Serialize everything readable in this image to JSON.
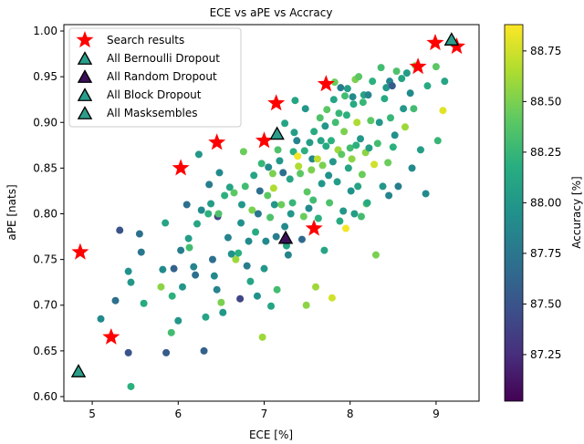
{
  "chart_data": {
    "type": "scatter",
    "title": "ECE vs aPE vs Accracy",
    "xlabel": "ECE [%]",
    "ylabel": "aPE [nats]",
    "xlim": [
      4.67,
      9.5
    ],
    "ylim": [
      0.595,
      1.007
    ],
    "xticks": [
      5,
      6,
      7,
      8,
      9
    ],
    "yticks": [
      0.6,
      0.65,
      0.7,
      0.75,
      0.8,
      0.85,
      0.9,
      0.95,
      1.0
    ],
    "xtick_labels": [
      "5",
      "6",
      "7",
      "8",
      "9"
    ],
    "ytick_labels": [
      "0.60",
      "0.65",
      "0.70",
      "0.75",
      "0.80",
      "0.85",
      "0.90",
      "0.95",
      "1.00"
    ],
    "grid": false,
    "legend_position": "top-left",
    "colorbar": {
      "label": "Accuracy [%]",
      "colormap": "viridis",
      "range": [
        87.02,
        88.88
      ],
      "ticks": [
        87.25,
        87.5,
        87.75,
        88.0,
        88.25,
        88.5,
        88.75
      ],
      "tick_labels": [
        "87.25",
        "87.50",
        "87.75",
        "88.00",
        "88.25",
        "88.50",
        "88.75"
      ]
    },
    "series": [
      {
        "name": "Search results",
        "marker": "star",
        "color": "#ff0000",
        "points": [
          [
            4.86,
            0.758
          ],
          [
            5.22,
            0.665
          ],
          [
            6.03,
            0.85
          ],
          [
            6.45,
            0.878
          ],
          [
            7.0,
            0.88
          ],
          [
            7.14,
            0.921
          ],
          [
            7.58,
            0.784
          ],
          [
            7.72,
            0.942
          ],
          [
            8.79,
            0.961
          ],
          [
            8.99,
            0.987
          ],
          [
            9.24,
            0.983
          ]
        ]
      },
      {
        "name": "All Bernoulli Dropout",
        "marker": "triangle",
        "color": "#2b9e8a",
        "points": [
          [
            4.84,
            0.627
          ]
        ]
      },
      {
        "name": "All Random Dropout",
        "marker": "triangle",
        "color": "#3b0f58",
        "points": [
          [
            7.25,
            0.773
          ]
        ]
      },
      {
        "name": "All Block Dropout",
        "marker": "triangle",
        "color": "#2a9e8c",
        "points": [
          [
            7.15,
            0.887
          ]
        ]
      },
      {
        "name": "All Masksembles",
        "marker": "triangle",
        "color": "#2d9d8a",
        "points": [
          [
            9.18,
            0.99
          ]
        ]
      }
    ],
    "scatter_points": [
      [
        5.1,
        0.685,
        87.9
      ],
      [
        5.27,
        0.705,
        87.7
      ],
      [
        5.32,
        0.782,
        87.5
      ],
      [
        5.42,
        0.737,
        87.95
      ],
      [
        5.42,
        0.648,
        87.5
      ],
      [
        5.45,
        0.611,
        88.2
      ],
      [
        5.45,
        0.725,
        88.0
      ],
      [
        5.55,
        0.778,
        87.7
      ],
      [
        5.57,
        0.758,
        87.75
      ],
      [
        5.6,
        0.702,
        88.15
      ],
      [
        5.8,
        0.72,
        88.55
      ],
      [
        5.82,
        0.739,
        87.9
      ],
      [
        5.85,
        0.79,
        88.1
      ],
      [
        5.86,
        0.648,
        87.55
      ],
      [
        5.92,
        0.67,
        88.3
      ],
      [
        5.93,
        0.71,
        88.2
      ],
      [
        5.95,
        0.74,
        87.6
      ],
      [
        6.0,
        0.683,
        88.0
      ],
      [
        6.03,
        0.76,
        87.8
      ],
      [
        6.05,
        0.72,
        88.0
      ],
      [
        6.1,
        0.81,
        87.7
      ],
      [
        6.12,
        0.773,
        88.05
      ],
      [
        6.13,
        0.763,
        88.3
      ],
      [
        6.18,
        0.742,
        87.85
      ],
      [
        6.2,
        0.733,
        87.7
      ],
      [
        6.22,
        0.789,
        88.1
      ],
      [
        6.24,
        0.865,
        88.0
      ],
      [
        6.27,
        0.804,
        87.9
      ],
      [
        6.3,
        0.65,
        87.6
      ],
      [
        6.32,
        0.687,
        88.1
      ],
      [
        6.35,
        0.8,
        88.2
      ],
      [
        6.36,
        0.832,
        87.8
      ],
      [
        6.38,
        0.811,
        88.05
      ],
      [
        6.4,
        0.75,
        87.7
      ],
      [
        6.42,
        0.732,
        87.9
      ],
      [
        6.45,
        0.717,
        87.85
      ],
      [
        6.46,
        0.797,
        87.4
      ],
      [
        6.47,
        0.8,
        88.35
      ],
      [
        6.48,
        0.845,
        87.9
      ],
      [
        6.5,
        0.703,
        88.5
      ],
      [
        6.52,
        0.692,
        88.0
      ],
      [
        6.54,
        0.82,
        88.2
      ],
      [
        6.58,
        0.774,
        87.85
      ],
      [
        6.6,
        0.829,
        88.1
      ],
      [
        6.62,
        0.756,
        87.95
      ],
      [
        6.65,
        0.823,
        88.4
      ],
      [
        6.67,
        0.75,
        88.6
      ],
      [
        6.7,
        0.757,
        88.2
      ],
      [
        6.72,
        0.707,
        87.4
      ],
      [
        6.73,
        0.79,
        87.95
      ],
      [
        6.74,
        0.81,
        88.0
      ],
      [
        6.76,
        0.868,
        88.45
      ],
      [
        6.78,
        0.83,
        88.3
      ],
      [
        6.8,
        0.743,
        87.8
      ],
      [
        6.82,
        0.77,
        87.9
      ],
      [
        6.84,
        0.726,
        88.1
      ],
      [
        6.86,
        0.804,
        88.5
      ],
      [
        6.88,
        0.842,
        88.1
      ],
      [
        6.9,
        0.78,
        88.15
      ],
      [
        6.92,
        0.71,
        87.95
      ],
      [
        6.93,
        0.8,
        87.75
      ],
      [
        6.95,
        0.825,
        87.7
      ],
      [
        6.97,
        0.855,
        88.25
      ],
      [
        6.98,
        0.665,
        88.6
      ],
      [
        7.0,
        0.74,
        88.0
      ],
      [
        7.02,
        0.77,
        87.9
      ],
      [
        7.04,
        0.82,
        88.4
      ],
      [
        7.05,
        0.851,
        87.9
      ],
      [
        7.07,
        0.796,
        88.35
      ],
      [
        7.08,
        0.699,
        88.1
      ],
      [
        7.1,
        0.844,
        88.5
      ],
      [
        7.11,
        0.828,
        88.65
      ],
      [
        7.12,
        0.81,
        88.0
      ],
      [
        7.14,
        0.775,
        87.8
      ],
      [
        7.15,
        0.717,
        88.3
      ],
      [
        7.16,
        0.87,
        88.35
      ],
      [
        7.18,
        0.858,
        88.0
      ],
      [
        7.2,
        0.81,
        88.45
      ],
      [
        7.22,
        0.845,
        87.7
      ],
      [
        7.24,
        0.786,
        87.9
      ],
      [
        7.24,
        0.899,
        88.1
      ],
      [
        7.26,
        0.765,
        88.1
      ],
      [
        7.28,
        0.755,
        87.85
      ],
      [
        7.3,
        0.838,
        88.1
      ],
      [
        7.31,
        0.8,
        88.0
      ],
      [
        7.33,
        0.812,
        88.25
      ],
      [
        7.34,
        0.868,
        88.2
      ],
      [
        7.35,
        0.889,
        88.05
      ],
      [
        7.36,
        0.924,
        88.1
      ],
      [
        7.38,
        0.88,
        87.85
      ],
      [
        7.39,
        0.863,
        88.85
      ],
      [
        7.4,
        0.852,
        88.65
      ],
      [
        7.42,
        0.844,
        88.4
      ],
      [
        7.44,
        0.772,
        87.65
      ],
      [
        7.46,
        0.797,
        88.45
      ],
      [
        7.47,
        0.869,
        88.2
      ],
      [
        7.48,
        0.915,
        88.0
      ],
      [
        7.49,
        0.7,
        88.55
      ],
      [
        7.5,
        0.824,
        88.4
      ],
      [
        7.52,
        0.806,
        87.9
      ],
      [
        7.53,
        0.878,
        88.05
      ],
      [
        7.55,
        0.848,
        88.5
      ],
      [
        7.56,
        0.86,
        87.9
      ],
      [
        7.57,
        0.815,
        88.3
      ],
      [
        7.58,
        0.89,
        88.15
      ],
      [
        7.6,
        0.72,
        88.6
      ],
      [
        7.62,
        0.86,
        88.7
      ],
      [
        7.63,
        0.795,
        88.2
      ],
      [
        7.65,
        0.905,
        88.35
      ],
      [
        7.66,
        0.88,
        88.1
      ],
      [
        7.67,
        0.833,
        88.0
      ],
      [
        7.68,
        0.853,
        88.5
      ],
      [
        7.7,
        0.76,
        88.1
      ],
      [
        7.71,
        0.896,
        88.0
      ],
      [
        7.72,
        0.874,
        88.15
      ],
      [
        7.73,
        0.914,
        88.4
      ],
      [
        7.75,
        0.842,
        87.95
      ],
      [
        7.76,
        0.812,
        88.35
      ],
      [
        7.78,
        0.88,
        88.2
      ],
      [
        7.79,
        0.708,
        88.75
      ],
      [
        7.8,
        0.857,
        88.0
      ],
      [
        7.81,
        0.925,
        88.1
      ],
      [
        7.82,
        0.944,
        88.45
      ],
      [
        7.83,
        0.9,
        88.3
      ],
      [
        7.85,
        0.835,
        88.05
      ],
      [
        7.86,
        0.87,
        88.6
      ],
      [
        7.87,
        0.91,
        88.25
      ],
      [
        7.88,
        0.792,
        88.15
      ],
      [
        7.89,
        0.938,
        87.8
      ],
      [
        7.9,
        0.865,
        88.4
      ],
      [
        7.92,
        0.803,
        88.0
      ],
      [
        7.93,
        0.89,
        88.5
      ],
      [
        7.94,
        0.929,
        88.3
      ],
      [
        7.95,
        0.784,
        88.85
      ],
      [
        7.96,
        0.908,
        88.2
      ],
      [
        7.97,
        0.937,
        88.05
      ],
      [
        7.98,
        0.85,
        88.1
      ],
      [
        8.0,
        0.872,
        88.3
      ],
      [
        8.01,
        0.825,
        87.95
      ],
      [
        8.02,
        0.86,
        88.55
      ],
      [
        8.03,
        0.928,
        87.9
      ],
      [
        8.04,
        0.92,
        88.15
      ],
      [
        8.05,
        0.8,
        88.05
      ],
      [
        8.06,
        0.947,
        88.5
      ],
      [
        8.07,
        0.875,
        88.2
      ],
      [
        8.08,
        0.9,
        88.65
      ],
      [
        8.09,
        0.83,
        88.1
      ],
      [
        8.1,
        0.95,
        88.4
      ],
      [
        8.12,
        0.882,
        88.0
      ],
      [
        8.13,
        0.797,
        88.3
      ],
      [
        8.14,
        0.843,
        88.45
      ],
      [
        8.15,
        0.922,
        88.25
      ],
      [
        8.16,
        0.93,
        88.1
      ],
      [
        8.18,
        0.867,
        88.55
      ],
      [
        8.19,
        0.811,
        88.35
      ],
      [
        8.2,
        0.812,
        88.15
      ],
      [
        8.21,
        0.93,
        87.85
      ],
      [
        8.22,
        0.872,
        88.05
      ],
      [
        8.24,
        0.902,
        88.4
      ],
      [
        8.26,
        0.945,
        88.2
      ],
      [
        8.28,
        0.854,
        88.75
      ],
      [
        8.3,
        0.755,
        88.5
      ],
      [
        8.32,
        0.877,
        88.3
      ],
      [
        8.34,
        0.9,
        88.0
      ],
      [
        8.36,
        0.96,
        88.3
      ],
      [
        8.38,
        0.83,
        88.0
      ],
      [
        8.4,
        0.926,
        88.15
      ],
      [
        8.42,
        0.938,
        88.0
      ],
      [
        8.44,
        0.856,
        88.45
      ],
      [
        8.45,
        0.82,
        87.85
      ],
      [
        8.46,
        0.945,
        87.85
      ],
      [
        8.47,
        0.905,
        88.25
      ],
      [
        8.49,
        0.94,
        87.55
      ],
      [
        8.5,
        0.873,
        88.2
      ],
      [
        8.52,
        0.886,
        87.95
      ],
      [
        8.54,
        0.956,
        88.35
      ],
      [
        8.56,
        0.83,
        87.8
      ],
      [
        8.6,
        0.948,
        88.1
      ],
      [
        8.62,
        0.915,
        88.0
      ],
      [
        8.64,
        0.895,
        88.6
      ],
      [
        8.66,
        0.954,
        88.05
      ],
      [
        8.7,
        0.932,
        87.9
      ],
      [
        8.72,
        0.85,
        87.9
      ],
      [
        8.74,
        0.915,
        88.3
      ],
      [
        8.76,
        0.962,
        88.5
      ],
      [
        8.82,
        0.87,
        88.05
      ],
      [
        8.88,
        0.822,
        87.9
      ],
      [
        8.9,
        0.94,
        88.15
      ],
      [
        9.0,
        0.961,
        88.4
      ],
      [
        9.02,
        0.88,
        88.25
      ],
      [
        9.08,
        0.913,
        88.8
      ],
      [
        9.1,
        0.945,
        88.1
      ]
    ]
  }
}
